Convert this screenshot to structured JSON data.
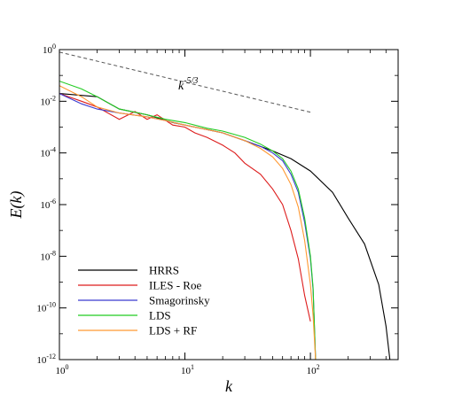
{
  "chart_data": {
    "type": "line",
    "xlabel": "k",
    "ylabel": "E(k)",
    "x_scale": "log",
    "y_scale": "log",
    "xlim": [
      1,
      500
    ],
    "ylim": [
      1e-12,
      1
    ],
    "x_ticks": [
      {
        "value": 1,
        "base": "10",
        "exp": "0"
      },
      {
        "value": 10,
        "base": "10",
        "exp": "1"
      },
      {
        "value": 100,
        "base": "10",
        "exp": "2"
      }
    ],
    "y_ticks": [
      {
        "value": 1,
        "base": "10",
        "exp": "0"
      },
      {
        "value": 0.01,
        "base": "10",
        "exp": "-2"
      },
      {
        "value": 0.0001,
        "base": "10",
        "exp": "-4"
      },
      {
        "value": 1e-06,
        "base": "10",
        "exp": "-6"
      },
      {
        "value": 1e-08,
        "base": "10",
        "exp": "-8"
      },
      {
        "value": 1e-10,
        "base": "10",
        "exp": "-10"
      },
      {
        "value": 1e-12,
        "base": "10",
        "exp": "-12"
      }
    ],
    "legend_position": "bottom-left",
    "grid": false,
    "annotation": {
      "base": "k",
      "exp": "-5/3"
    },
    "reference_line": {
      "style": "dashed",
      "color": "#555555",
      "x": [
        1,
        100
      ],
      "y": [
        0.8,
        0.00377
      ]
    },
    "series": [
      {
        "name": "HRRS",
        "color": "#000000",
        "x": [
          1,
          2,
          3,
          5,
          8,
          12,
          20,
          30,
          50,
          70,
          100,
          150,
          200,
          270,
          350,
          400,
          430
        ],
        "y": [
          0.02,
          0.015,
          0.005,
          0.003,
          0.0015,
          0.001,
          0.0006,
          0.0003,
          0.00012,
          6e-05,
          2e-05,
          3e-06,
          3e-07,
          3e-08,
          8e-10,
          2e-11,
          1e-12
        ]
      },
      {
        "name": "ILES - Roe",
        "color": "#dd1c1c",
        "x": [
          1,
          1.5,
          2,
          3,
          4,
          5,
          6,
          8,
          10,
          12,
          15,
          20,
          25,
          30,
          40,
          50,
          60,
          70,
          80,
          90,
          100
        ],
        "y": [
          0.02,
          0.01,
          0.006,
          0.002,
          0.004,
          0.002,
          0.003,
          0.0012,
          0.001,
          0.0006,
          0.0004,
          0.0002,
          0.0001,
          4e-05,
          1.5e-05,
          4e-06,
          1e-06,
          1e-07,
          8e-09,
          3e-10,
          3e-11
        ]
      },
      {
        "name": "Smagorinsky",
        "color": "#3a3acf",
        "x": [
          1,
          1.5,
          2,
          3,
          5,
          7,
          10,
          15,
          20,
          30,
          40,
          50,
          60,
          70,
          80,
          90,
          100,
          105,
          110
        ],
        "y": [
          0.02,
          0.008,
          0.005,
          0.0035,
          0.0025,
          0.0018,
          0.0012,
          0.0008,
          0.0006,
          0.0003,
          0.00018,
          0.0001,
          5e-05,
          1.5e-05,
          3e-06,
          2e-07,
          8e-09,
          5e-10,
          1e-12
        ]
      },
      {
        "name": "LDS",
        "color": "#22cc22",
        "x": [
          1,
          1.5,
          2,
          3,
          5,
          7,
          10,
          15,
          20,
          30,
          40,
          50,
          60,
          70,
          80,
          90,
          100,
          105,
          110
        ],
        "y": [
          0.06,
          0.03,
          0.015,
          0.005,
          0.003,
          0.002,
          0.0015,
          0.0009,
          0.0007,
          0.0004,
          0.00022,
          0.00012,
          6e-05,
          2e-05,
          4e-06,
          3e-07,
          1e-08,
          6e-10,
          1e-12
        ]
      },
      {
        "name": "LDS + RF",
        "color": "#ff9933",
        "x": [
          1,
          1.5,
          2,
          3,
          5,
          7,
          10,
          15,
          20,
          30,
          40,
          50,
          60,
          70,
          80,
          90,
          100,
          105,
          110
        ],
        "y": [
          0.04,
          0.015,
          0.006,
          0.0035,
          0.0025,
          0.0018,
          0.0012,
          0.0008,
          0.0006,
          0.0003,
          0.00015,
          7e-05,
          2.5e-05,
          6e-06,
          8e-07,
          4e-08,
          8e-10,
          5e-11,
          1e-12
        ]
      }
    ]
  }
}
